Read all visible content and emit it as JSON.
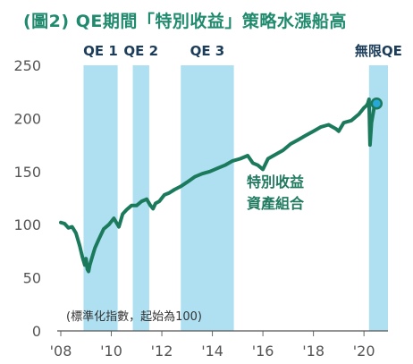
{
  "chart_data": {
    "type": "line",
    "title": "(圖2) QE期間「特別收益」策略水漲船高",
    "note": "(標準化指數，起始為100)",
    "series_label_line1": "特別收益",
    "series_label_line2": "資產組合",
    "ylim": [
      0,
      250
    ],
    "y_ticks": [
      0,
      50,
      100,
      150,
      200,
      250
    ],
    "xlim": [
      2008.0,
      2020.95
    ],
    "x_ticks": [
      {
        "value": 2008,
        "label": "'08"
      },
      {
        "value": 2010,
        "label": "'10"
      },
      {
        "value": 2012,
        "label": "'12"
      },
      {
        "value": 2014,
        "label": "'14"
      },
      {
        "value": 2016,
        "label": "'16"
      },
      {
        "value": 2018,
        "label": "'18"
      },
      {
        "value": 2020,
        "label": "'20"
      }
    ],
    "shaded_periods": [
      {
        "label": "QE 1",
        "start": 2008.9,
        "end": 2010.25
      },
      {
        "label": "QE 2",
        "start": 2010.85,
        "end": 2011.5
      },
      {
        "label": "QE 3",
        "start": 2012.75,
        "end": 2014.85
      },
      {
        "label": "無限QE",
        "start": 2020.2,
        "end": 2020.95
      }
    ],
    "series": [
      {
        "x": [
          2008.0,
          2008.15,
          2008.3,
          2008.45,
          2008.6,
          2008.75,
          2008.85,
          2008.95,
          2009.0,
          2009.05,
          2009.1,
          2009.15,
          2009.25,
          2009.35,
          2009.5,
          2009.7,
          2009.9,
          2010.1,
          2010.3,
          2010.45,
          2010.6,
          2010.8,
          2011.0,
          2011.2,
          2011.4,
          2011.55,
          2011.65,
          2011.75,
          2011.9,
          2012.1,
          2012.3,
          2012.5,
          2012.75,
          2013.0,
          2013.3,
          2013.6,
          2013.9,
          2014.2,
          2014.5,
          2014.8,
          2015.1,
          2015.4,
          2015.6,
          2015.8,
          2016.0,
          2016.2,
          2016.5,
          2016.8,
          2017.1,
          2017.4,
          2017.7,
          2018.0,
          2018.3,
          2018.6,
          2018.9,
          2019.0,
          2019.2,
          2019.5,
          2019.8,
          2020.0,
          2020.1,
          2020.15,
          2020.2,
          2020.24,
          2020.3,
          2020.4,
          2020.5
        ],
        "values": [
          102,
          101,
          97,
          98,
          92,
          80,
          70,
          62,
          68,
          58,
          56,
          62,
          70,
          78,
          86,
          96,
          100,
          106,
          98,
          110,
          114,
          118,
          118,
          122,
          124,
          118,
          115,
          120,
          122,
          128,
          130,
          133,
          136,
          140,
          145,
          148,
          150,
          153,
          156,
          160,
          162,
          165,
          158,
          156,
          152,
          162,
          166,
          170,
          176,
          180,
          184,
          188,
          192,
          194,
          190,
          188,
          196,
          198,
          204,
          210,
          212,
          214,
          218,
          175,
          196,
          210,
          214
        ]
      }
    ]
  }
}
